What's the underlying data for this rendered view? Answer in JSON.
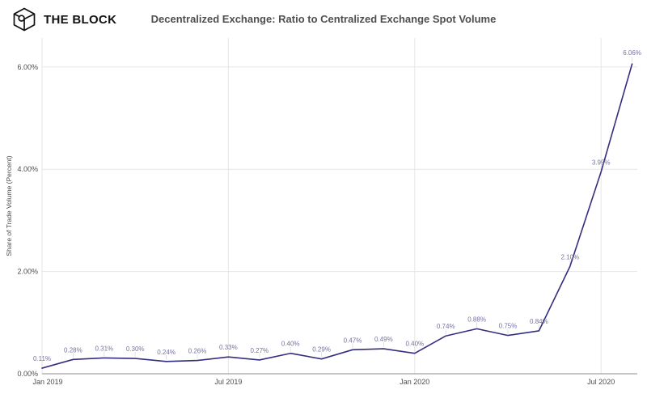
{
  "header": {
    "logo_text": "THE BLOCK",
    "title": "Decentralized Exchange: Ratio to Centralized Exchange Spot Volume"
  },
  "chart_data": {
    "type": "line",
    "title": "Decentralized Exchange: Ratio to Centralized Exchange Spot Volume",
    "xlabel": "",
    "ylabel": "Share of Trade Volume (Percent)",
    "x": [
      "Jan 2019",
      "Feb 2019",
      "Mar 2019",
      "Apr 2019",
      "May 2019",
      "Jun 2019",
      "Jul 2019",
      "Aug 2019",
      "Sep 2019",
      "Oct 2019",
      "Nov 2019",
      "Dec 2019",
      "Jan 2020",
      "Feb 2020",
      "Mar 2020",
      "Apr 2020",
      "May 2020",
      "Jun 2020",
      "Jul 2020",
      "Aug 2020"
    ],
    "values": [
      0.11,
      0.28,
      0.31,
      0.3,
      0.24,
      0.26,
      0.33,
      0.27,
      0.4,
      0.29,
      0.47,
      0.49,
      0.4,
      0.74,
      0.88,
      0.75,
      0.84,
      2.1,
      3.95,
      6.06
    ],
    "point_label_suffix": "%",
    "y_ticks": [
      {
        "value": 0,
        "label": "0.00%"
      },
      {
        "value": 2,
        "label": "2.00%"
      },
      {
        "value": 4,
        "label": "4.00%"
      },
      {
        "value": 6,
        "label": "6.00%"
      }
    ],
    "x_ticks": [
      {
        "index": 0,
        "label": "Jan 2019"
      },
      {
        "index": 6,
        "label": "Jul 2019"
      },
      {
        "index": 12,
        "label": "Jan 2020"
      },
      {
        "index": 18,
        "label": "Jul 2020"
      }
    ],
    "ylim": [
      0,
      6.6
    ],
    "grid": true,
    "legend": false,
    "colors": {
      "line": "#332e7d",
      "point_label": "#75739c",
      "axis_text": "#4d4d4d",
      "grid": "#e6e6e6",
      "axis_line": "#8c8c8c",
      "leader_line": "#dcdcdc",
      "title": "#4f4f4f"
    }
  }
}
